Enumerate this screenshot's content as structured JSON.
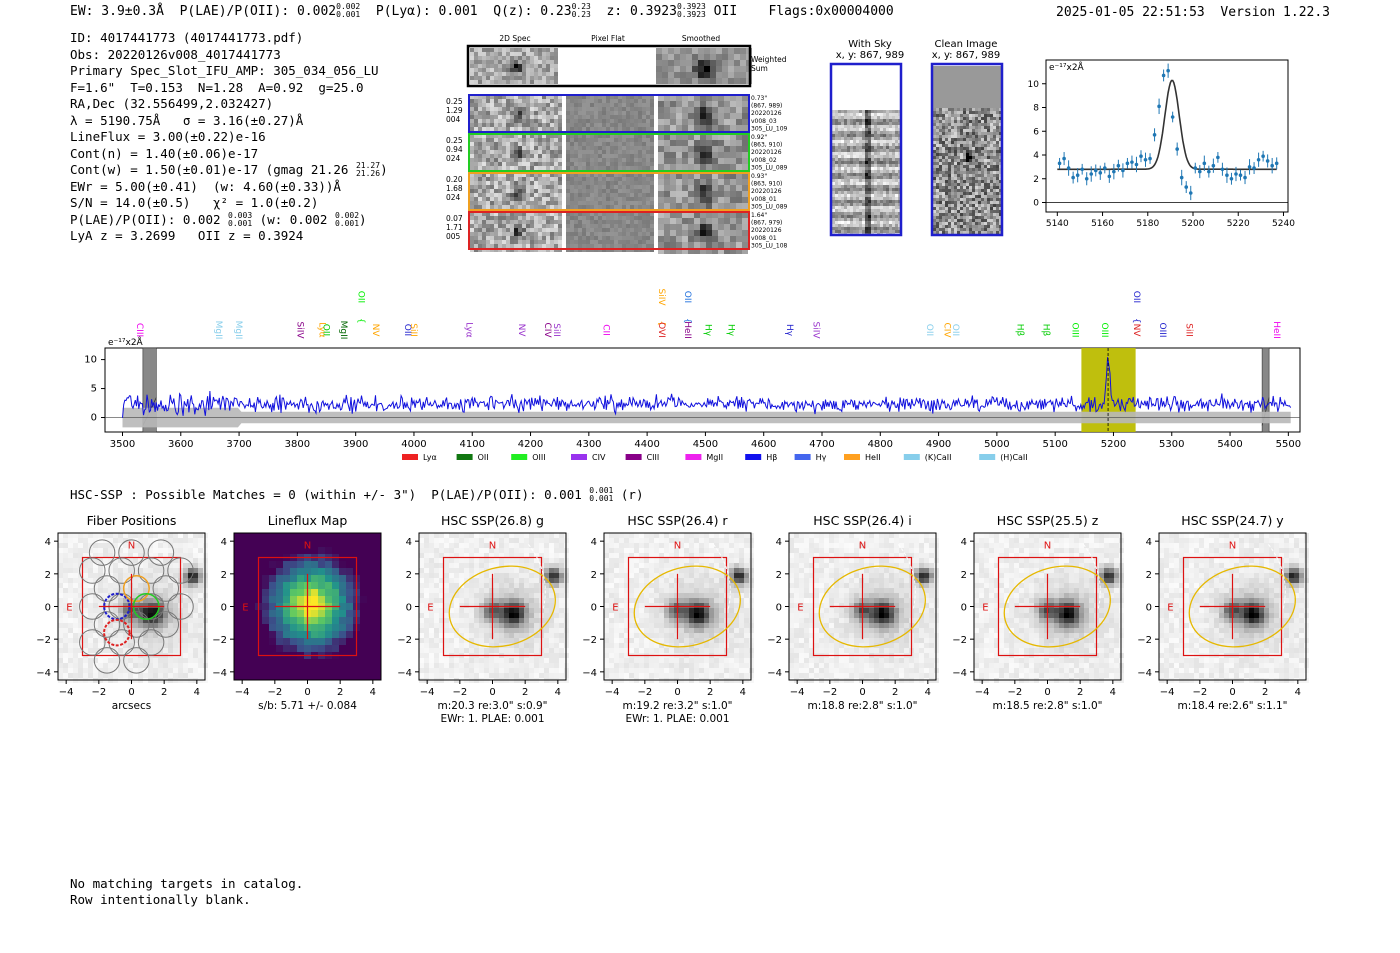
{
  "header": {
    "ew": "EW: 3.9±0.3Å",
    "plae": "P(LAE)/P(OII): 0.002",
    "plae_sup": "0.002",
    "plae_sub": "0.001",
    "plya": "P(Lyα): 0.001",
    "qz": "Q(z): 0.23",
    "qz_sup": "0.23",
    "qz_sub": "0.23",
    "z": "z: 0.3923",
    "z_sup": "0.3923",
    "z_sub": "0.3923",
    "z_line": "OII",
    "flags": "Flags:0x00004000",
    "datetime": "2025-01-05 22:51:53",
    "version": "Version 1.22.3"
  },
  "info": {
    "id": "ID: 4017441773 (4017441773.pdf)",
    "obs": "Obs: 20220126v008_4017441773",
    "primary": "Primary Spec_Slot_IFU_AMP: 305_034_056_LU",
    "params": "F=1.6\"  T=0.153  N=1.28  A=0.92  g=25.0",
    "radec": "RA,Dec (32.556499,2.032427)",
    "lambda": "λ = 5190.75Å   σ = 3.16(±0.27)Å",
    "lineflux": "LineFlux = 3.00(±0.22)e-16",
    "contn": "Cont(n) = 1.40(±0.06)e-17",
    "contw": "Cont(w) = 1.50(±0.01)e-17 (gmag 21.26",
    "contw_sup": "21.27",
    "contw_sub": "21.26",
    "contw_close": ")",
    "ewr": "EWr = 5.00(±0.41)  (w: 4.60(±0.33))Å",
    "sn": "S/N = 14.0(±0.5)   χ² = 1.0(±0.2)",
    "plae2": "P(LAE)/P(OII): 0.002",
    "plae2_sup": "0.003",
    "plae2_sub": "0.001",
    "plae2_w": " (w: 0.002",
    "plae2_w_sup": "0.002",
    "plae2_w_sub": "0.001",
    "plae2_close": ")",
    "lya": "LyA z = 3.2699   OII z = 0.3924"
  },
  "cutouts": {
    "col_2d": "2D Spec",
    "col_flat": "Pixel Flat",
    "col_smooth": "Smoothed",
    "weighted": "Weighted Sum",
    "rows": [
      {
        "left": [
          "0.25",
          "1.29",
          "004"
        ],
        "right": [
          "0.73\"",
          "(867, 989)",
          "20220126",
          "v008_03",
          "305_LU_109"
        ],
        "color": "#1f1fcc"
      },
      {
        "left": [
          "0.25",
          "0.94",
          "024"
        ],
        "right": [
          "0.92\"",
          "(863, 910)",
          "20220126",
          "v008_02",
          "305_LU_089"
        ],
        "color": "#22cc22"
      },
      {
        "left": [
          "0.20",
          "1.68",
          "024"
        ],
        "right": [
          "0.93\"",
          "(863, 910)",
          "20220126",
          "v008_01",
          "305_LU_089"
        ],
        "color": "#f0a020"
      },
      {
        "left": [
          "0.07",
          "1.71",
          "005"
        ],
        "right": [
          "1.64\"",
          "(867, 979)",
          "20220126",
          "v008_01",
          "305_LU_108"
        ],
        "color": "#dd2222"
      }
    ]
  },
  "sky": {
    "with_sky_title": "With Sky",
    "with_sky_xy": "x, y: 867, 989",
    "clean_title": "Clean Image",
    "clean_xy": "x, y: 867, 989"
  },
  "fit_plot": {
    "ylabel": "e⁻¹⁷x2Å",
    "colors": {
      "points": "#1f77b4",
      "model": "#333333"
    }
  },
  "spectrum_ylabel": "e⁻¹⁷x2Å",
  "line_labels": [
    {
      "name": "CIII",
      "w": 3525,
      "c": "#ee00ee",
      "row": 1
    },
    {
      "name": "MgII",
      "w": 3660,
      "c": "#87ceeb",
      "row": 1
    },
    {
      "name": "MgII",
      "w": 3695,
      "c": "#87ceeb",
      "row": 1
    },
    {
      "name": "SiIV",
      "w": 3800,
      "c": "#880088",
      "row": 1
    },
    {
      "name": "Lyα",
      "w": 3838,
      "c": "#ffa500",
      "row": 1
    },
    {
      "name": "OII",
      "w": 3845,
      "c": "#00cc00",
      "row": 1
    },
    {
      "name": "MgII",
      "w": 3875,
      "c": "#006600",
      "row": 1
    },
    {
      "name": "OII",
      "w": 3905,
      "c": "#00ee00",
      "row": 0
    },
    {
      "name": "NV",
      "w": 3930,
      "c": "#ffa500",
      "row": 1
    },
    {
      "name": "OII",
      "w": 3985,
      "c": "#1f1fcc",
      "row": 1
    },
    {
      "name": "SiII",
      "w": 3995,
      "c": "#ffa500",
      "row": 1
    },
    {
      "name": "Lyα",
      "w": 4090,
      "c": "#9933cc",
      "row": 1
    },
    {
      "name": "NV",
      "w": 4180,
      "c": "#9933cc",
      "row": 1
    },
    {
      "name": "CIV",
      "w": 4225,
      "c": "#880088",
      "row": 1
    },
    {
      "name": "SiII",
      "w": 4240,
      "c": "#9933cc",
      "row": 1
    },
    {
      "name": "CII",
      "w": 4325,
      "c": "#ee00ee",
      "row": 1
    },
    {
      "name": "SiIV",
      "w": 4420,
      "c": "#ffa500",
      "row": 0
    },
    {
      "name": "OVI",
      "w": 4420,
      "c": "#dd2222",
      "row": 1
    },
    {
      "name": "OII",
      "w": 4465,
      "c": "#1f6fdd",
      "row": 0
    },
    {
      "name": "HeII",
      "w": 4465,
      "c": "#880088",
      "row": 1
    },
    {
      "name": "Hγ",
      "w": 4500,
      "c": "#00cc00",
      "row": 1
    },
    {
      "name": "Hγ",
      "w": 4540,
      "c": "#00cc00",
      "row": 1
    },
    {
      "name": "Hγ",
      "w": 4640,
      "c": "#1f1fcc",
      "row": 1
    },
    {
      "name": "SiIV",
      "w": 4685,
      "c": "#9933cc",
      "row": 1
    },
    {
      "name": "OII",
      "w": 4880,
      "c": "#87ceeb",
      "row": 1
    },
    {
      "name": "CIV",
      "w": 4910,
      "c": "#ffa500",
      "row": 1
    },
    {
      "name": "OII",
      "w": 4925,
      "c": "#87ceeb",
      "row": 1
    },
    {
      "name": "Hβ",
      "w": 5035,
      "c": "#00cc00",
      "row": 1
    },
    {
      "name": "Hβ",
      "w": 5080,
      "c": "#00cc00",
      "row": 1
    },
    {
      "name": "OIII",
      "w": 5130,
      "c": "#00ee00",
      "row": 1
    },
    {
      "name": "OIII",
      "w": 5180,
      "c": "#00ee00",
      "row": 1
    },
    {
      "name": "OII",
      "w": 5235,
      "c": "#1f1fcc",
      "row": 0
    },
    {
      "name": "NV",
      "w": 5235,
      "c": "#dd2222",
      "row": 1
    },
    {
      "name": "OIII",
      "w": 5280,
      "c": "#1f1fcc",
      "row": 1
    },
    {
      "name": "SiII",
      "w": 5325,
      "c": "#dd2222",
      "row": 1
    },
    {
      "name": "HeII",
      "w": 5475,
      "c": "#ee00ee",
      "row": 1
    }
  ],
  "legend": [
    {
      "name": "Lyα",
      "c": "#ee2222"
    },
    {
      "name": "OII",
      "c": "#117711"
    },
    {
      "name": "OIII",
      "c": "#22ee22"
    },
    {
      "name": "CIV",
      "c": "#9933ee"
    },
    {
      "name": "CIII",
      "c": "#880088"
    },
    {
      "name": "MgII",
      "c": "#ee22ee"
    },
    {
      "name": "Hβ",
      "c": "#1111ee"
    },
    {
      "name": "Hγ",
      "c": "#4466ee"
    },
    {
      "name": "HeII",
      "c": "#ffa020"
    },
    {
      "name": "(K)CaII",
      "c": "#87ceeb"
    },
    {
      "name": "(H)CaII",
      "c": "#87ceeb"
    }
  ],
  "hsc": {
    "line": "HSC-SSP : Possible Matches = 0 (within +/- 3\")  P(LAE)/P(OII): 0.001",
    "sup": "0.001",
    "sub": "0.001",
    "tail": " (r)"
  },
  "stamps": [
    {
      "title": "Fiber Positions",
      "xlabel": "arcsecs",
      "note1": "",
      "note2": ""
    },
    {
      "title": "Lineflux Map",
      "xlabel": "s/b: 5.71 +/- 0.084",
      "note1": "",
      "note2": ""
    },
    {
      "title": "HSC SSP(26.8) g",
      "xlabel": "m:20.3  re:3.0\"  s:0.9\"",
      "note1": "EWr: 1. PLAE: 0.001",
      "note2": ""
    },
    {
      "title": "HSC SSP(26.4) r",
      "xlabel": "m:19.2  re:3.2\"  s:1.0\"",
      "note1": "EWr: 1. PLAE: 0.001",
      "note2": ""
    },
    {
      "title": "HSC SSP(26.4) i",
      "xlabel": "m:18.8  re:2.8\"  s:1.0\"",
      "note1": "",
      "note2": ""
    },
    {
      "title": "HSC SSP(25.5) z",
      "xlabel": "m:18.5  re:2.8\"  s:1.0\"",
      "note1": "",
      "note2": ""
    },
    {
      "title": "HSC SSP(24.7) y",
      "xlabel": "m:18.4  re:2.6\"  s:1.1\"",
      "note1": "",
      "note2": ""
    }
  ],
  "stamp_labels": {
    "north": "N",
    "east": "E"
  },
  "footer": {
    "line1": "No matching targets in catalog.",
    "line2": "Row intentionally blank."
  },
  "chart_data": [
    {
      "type": "scatter",
      "title": "",
      "xlabel": "",
      "ylabel": "e⁻¹⁷x2Å",
      "xlim": [
        5135,
        5242
      ],
      "ylim": [
        -0.8,
        12
      ],
      "xticks": [
        5140,
        5160,
        5180,
        5200,
        5220,
        5240
      ],
      "yticks": [
        0,
        2,
        4,
        6,
        8,
        10
      ],
      "x": [
        5141,
        5143,
        5145,
        5147,
        5149,
        5151,
        5153,
        5155,
        5157,
        5159,
        5161,
        5163,
        5165,
        5167,
        5169,
        5171,
        5173,
        5175,
        5177,
        5179,
        5181,
        5183,
        5185,
        5187,
        5189,
        5191,
        5193,
        5195,
        5197,
        5199,
        5201,
        5203,
        5205,
        5207,
        5209,
        5211,
        5213,
        5215,
        5217,
        5219,
        5221,
        5223,
        5225,
        5227,
        5229,
        5231,
        5233,
        5235,
        5237
      ],
      "y": [
        3.3,
        3.7,
        2.9,
        2.1,
        2.3,
        2.8,
        2.0,
        2.4,
        2.7,
        2.5,
        2.9,
        2.2,
        2.6,
        3.1,
        2.7,
        3.3,
        3.4,
        3.2,
        3.9,
        3.6,
        3.7,
        5.7,
        8.1,
        10.7,
        11.1,
        7.2,
        4.5,
        2.1,
        1.3,
        0.8,
        2.9,
        2.6,
        3.3,
        2.6,
        3.1,
        3.8,
        2.8,
        2.3,
        2.0,
        2.4,
        2.3,
        2.1,
        3.0,
        2.9,
        3.6,
        3.9,
        3.5,
        3.1,
        3.3
      ],
      "model": {
        "continuum": 2.8,
        "peak": 10.3,
        "center": 5190.75,
        "sigma": 3.16
      }
    },
    {
      "type": "line",
      "title": "",
      "ylabel": "e⁻¹⁷x2Å",
      "xlim": [
        3470,
        5520
      ],
      "ylim": [
        -2.5,
        12
      ],
      "xticks": [
        3500,
        3600,
        3700,
        3800,
        3900,
        4000,
        4100,
        4200,
        4300,
        4400,
        4500,
        4600,
        4700,
        4800,
        4900,
        5000,
        5100,
        5200,
        5300,
        5400,
        5500
      ],
      "yticks": [
        0,
        5,
        10
      ],
      "series": [
        {
          "name": "spectrum",
          "color": "#1111dd",
          "baseline": 2.3,
          "noise": 1.1
        }
      ],
      "emission_line": {
        "wavelength": 5190.75,
        "peak": 10.2
      },
      "highlight_window": [
        5145,
        5238
      ],
      "masked_regions": [
        [
          3535,
          3558
        ],
        [
          5455,
          5467
        ]
      ]
    }
  ]
}
